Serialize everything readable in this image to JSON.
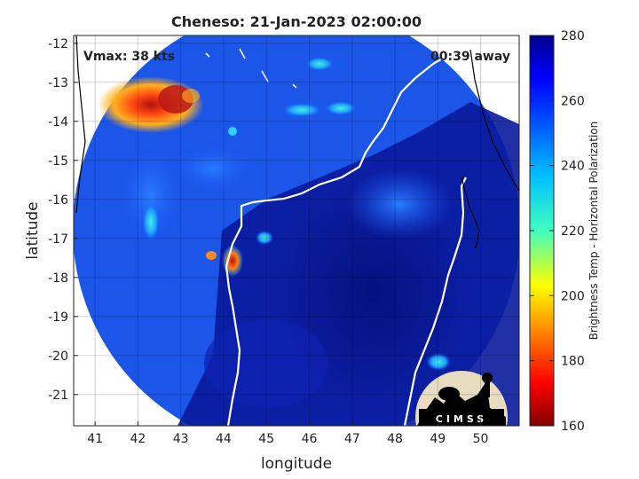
{
  "title": "Cheneso: 21-Jan-2023 02:00:00",
  "annotations": {
    "vmax": "Vmax: 38 kts",
    "time_away": "00:39 away"
  },
  "axes": {
    "xlabel": "longitude",
    "ylabel": "latitude",
    "xlim": [
      40.5,
      50.9
    ],
    "ylim": [
      -21.8,
      -11.8
    ],
    "xticks": [
      41,
      42,
      43,
      44,
      45,
      46,
      47,
      48,
      49,
      50
    ],
    "yticks": [
      -12,
      -13,
      -14,
      -15,
      -16,
      -17,
      -18,
      -19,
      -20,
      -21
    ],
    "grid": true
  },
  "colorbar": {
    "label": "Brightness Temp - Horizontal Polarization",
    "range": [
      160,
      280
    ],
    "ticks": [
      280,
      260,
      240,
      220,
      200,
      180,
      160
    ],
    "colormap": "jet"
  },
  "logo": {
    "text": "CIMSS"
  },
  "colors": {
    "field_background": "#0a1a9c",
    "coastline": "#ffffff",
    "landline": "#000000"
  }
}
